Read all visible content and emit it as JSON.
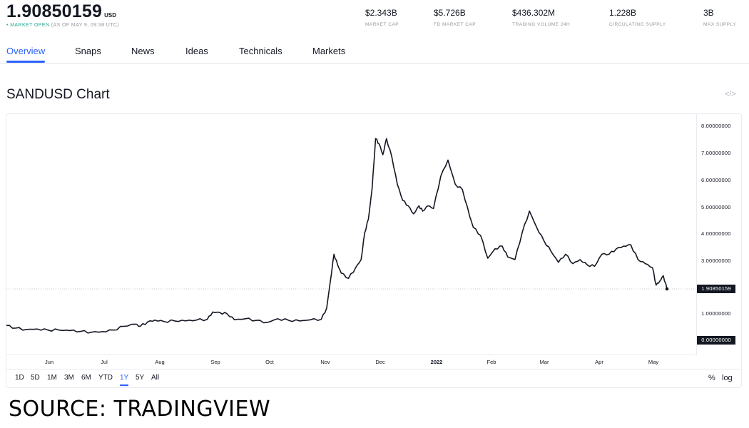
{
  "header": {
    "price": "1.90850159",
    "currency": "USD",
    "market_status": "• MARKET OPEN",
    "as_of": "(AS OF MAY 9, 09:38 UTC)",
    "stats": [
      {
        "value": "$2.343B",
        "label": "MARKET CAP"
      },
      {
        "value": "$5.726B",
        "label": "FD MARKET CAP"
      },
      {
        "value": "$436.302M",
        "label": "TRADING VOLUME 24H"
      },
      {
        "value": "1.228B",
        "label": "CIRCULATING SUPPLY"
      },
      {
        "value": "3B",
        "label": "MAX SUPPLY"
      }
    ]
  },
  "tabs": [
    {
      "label": "Overview",
      "active": true
    },
    {
      "label": "Snaps"
    },
    {
      "label": "News"
    },
    {
      "label": "Ideas"
    },
    {
      "label": "Technicals"
    },
    {
      "label": "Markets"
    }
  ],
  "chart_section": {
    "title": "SANDUSD Chart",
    "embed_icon": "</>"
  },
  "range_buttons": [
    "1D",
    "5D",
    "1M",
    "3M",
    "6M",
    "YTD",
    "1Y",
    "5Y",
    "All"
  ],
  "active_range": "1Y",
  "scale_buttons": [
    "%",
    "log"
  ],
  "source": "SOURCE: TRADINGVIEW",
  "colors": {
    "line": "#131722",
    "accent": "#2962ff",
    "market_open": "#22ab94",
    "badge_bg": "#131722"
  },
  "chart_data": {
    "type": "line",
    "title": "SANDUSD Chart",
    "xlabel": "",
    "ylabel": "",
    "ylim": [
      0,
      8
    ],
    "grid": false,
    "y_ticks": [
      "8.00000000",
      "7.00000000",
      "6.00000000",
      "5.00000000",
      "4.00000000",
      "3.00000000",
      "1.00000000",
      "0.00000000"
    ],
    "last_price_label": "1.90850159",
    "zero_label": "0.00000000",
    "x_ticks": [
      "Jun",
      "Jul",
      "Aug",
      "Sep",
      "Oct",
      "Nov",
      "Dec",
      "2022",
      "Feb",
      "Mar",
      "Apr",
      "May"
    ],
    "series": [
      {
        "name": "SANDUSD",
        "x": [
          "2021-05-09",
          "2021-05-14",
          "2021-05-20",
          "2021-05-26",
          "2021-06-01",
          "2021-06-07",
          "2021-06-13",
          "2021-06-19",
          "2021-06-25",
          "2021-07-01",
          "2021-07-07",
          "2021-07-13",
          "2021-07-19",
          "2021-07-22",
          "2021-07-26",
          "2021-07-30",
          "2021-08-04",
          "2021-08-10",
          "2021-08-16",
          "2021-08-22",
          "2021-08-28",
          "2021-08-31",
          "2021-09-04",
          "2021-09-08",
          "2021-09-12",
          "2021-09-18",
          "2021-09-24",
          "2021-09-30",
          "2021-10-06",
          "2021-10-12",
          "2021-10-18",
          "2021-10-24",
          "2021-10-30",
          "2021-11-02",
          "2021-11-04",
          "2021-11-06",
          "2021-11-08",
          "2021-11-10",
          "2021-11-14",
          "2021-11-18",
          "2021-11-21",
          "2021-11-23",
          "2021-11-25",
          "2021-11-27",
          "2021-11-29",
          "2021-12-01",
          "2021-12-03",
          "2021-12-05",
          "2021-12-08",
          "2021-12-11",
          "2021-12-14",
          "2021-12-17",
          "2021-12-20",
          "2021-12-23",
          "2021-12-25",
          "2021-12-28",
          "2021-12-31",
          "2022-01-04",
          "2022-01-08",
          "2022-01-12",
          "2022-01-16",
          "2022-01-20",
          "2022-01-22",
          "2022-01-26",
          "2022-01-30",
          "2022-02-03",
          "2022-02-07",
          "2022-02-10",
          "2022-02-14",
          "2022-02-18",
          "2022-02-22",
          "2022-02-26",
          "2022-03-02",
          "2022-03-06",
          "2022-03-10",
          "2022-03-14",
          "2022-03-18",
          "2022-03-22",
          "2022-03-26",
          "2022-03-30",
          "2022-04-03",
          "2022-04-07",
          "2022-04-11",
          "2022-04-15",
          "2022-04-19",
          "2022-04-23",
          "2022-04-27",
          "2022-05-01",
          "2022-05-03",
          "2022-05-05",
          "2022-05-07",
          "2022-05-09"
        ],
        "values": [
          0.55,
          0.45,
          0.4,
          0.42,
          0.38,
          0.38,
          0.36,
          0.33,
          0.3,
          0.32,
          0.38,
          0.52,
          0.6,
          0.52,
          0.68,
          0.75,
          0.7,
          0.72,
          0.72,
          0.75,
          0.78,
          1.05,
          1.03,
          0.98,
          0.76,
          0.8,
          0.74,
          0.66,
          0.8,
          0.74,
          0.72,
          0.76,
          0.78,
          1.2,
          2.2,
          3.2,
          2.8,
          2.5,
          2.3,
          2.7,
          3.0,
          4.0,
          4.5,
          5.6,
          7.5,
          7.3,
          6.9,
          7.5,
          6.8,
          5.8,
          5.2,
          5.0,
          4.7,
          5.0,
          4.8,
          5.0,
          4.9,
          6.1,
          6.7,
          5.8,
          5.6,
          4.6,
          4.2,
          3.9,
          3.05,
          3.4,
          3.5,
          3.1,
          3.0,
          4.0,
          4.8,
          4.2,
          3.7,
          3.3,
          2.9,
          3.2,
          2.85,
          3.0,
          2.8,
          2.75,
          3.2,
          3.2,
          3.4,
          3.5,
          3.55,
          3.0,
          2.85,
          2.7,
          2.05,
          2.2,
          2.4,
          1.91
        ]
      }
    ]
  }
}
